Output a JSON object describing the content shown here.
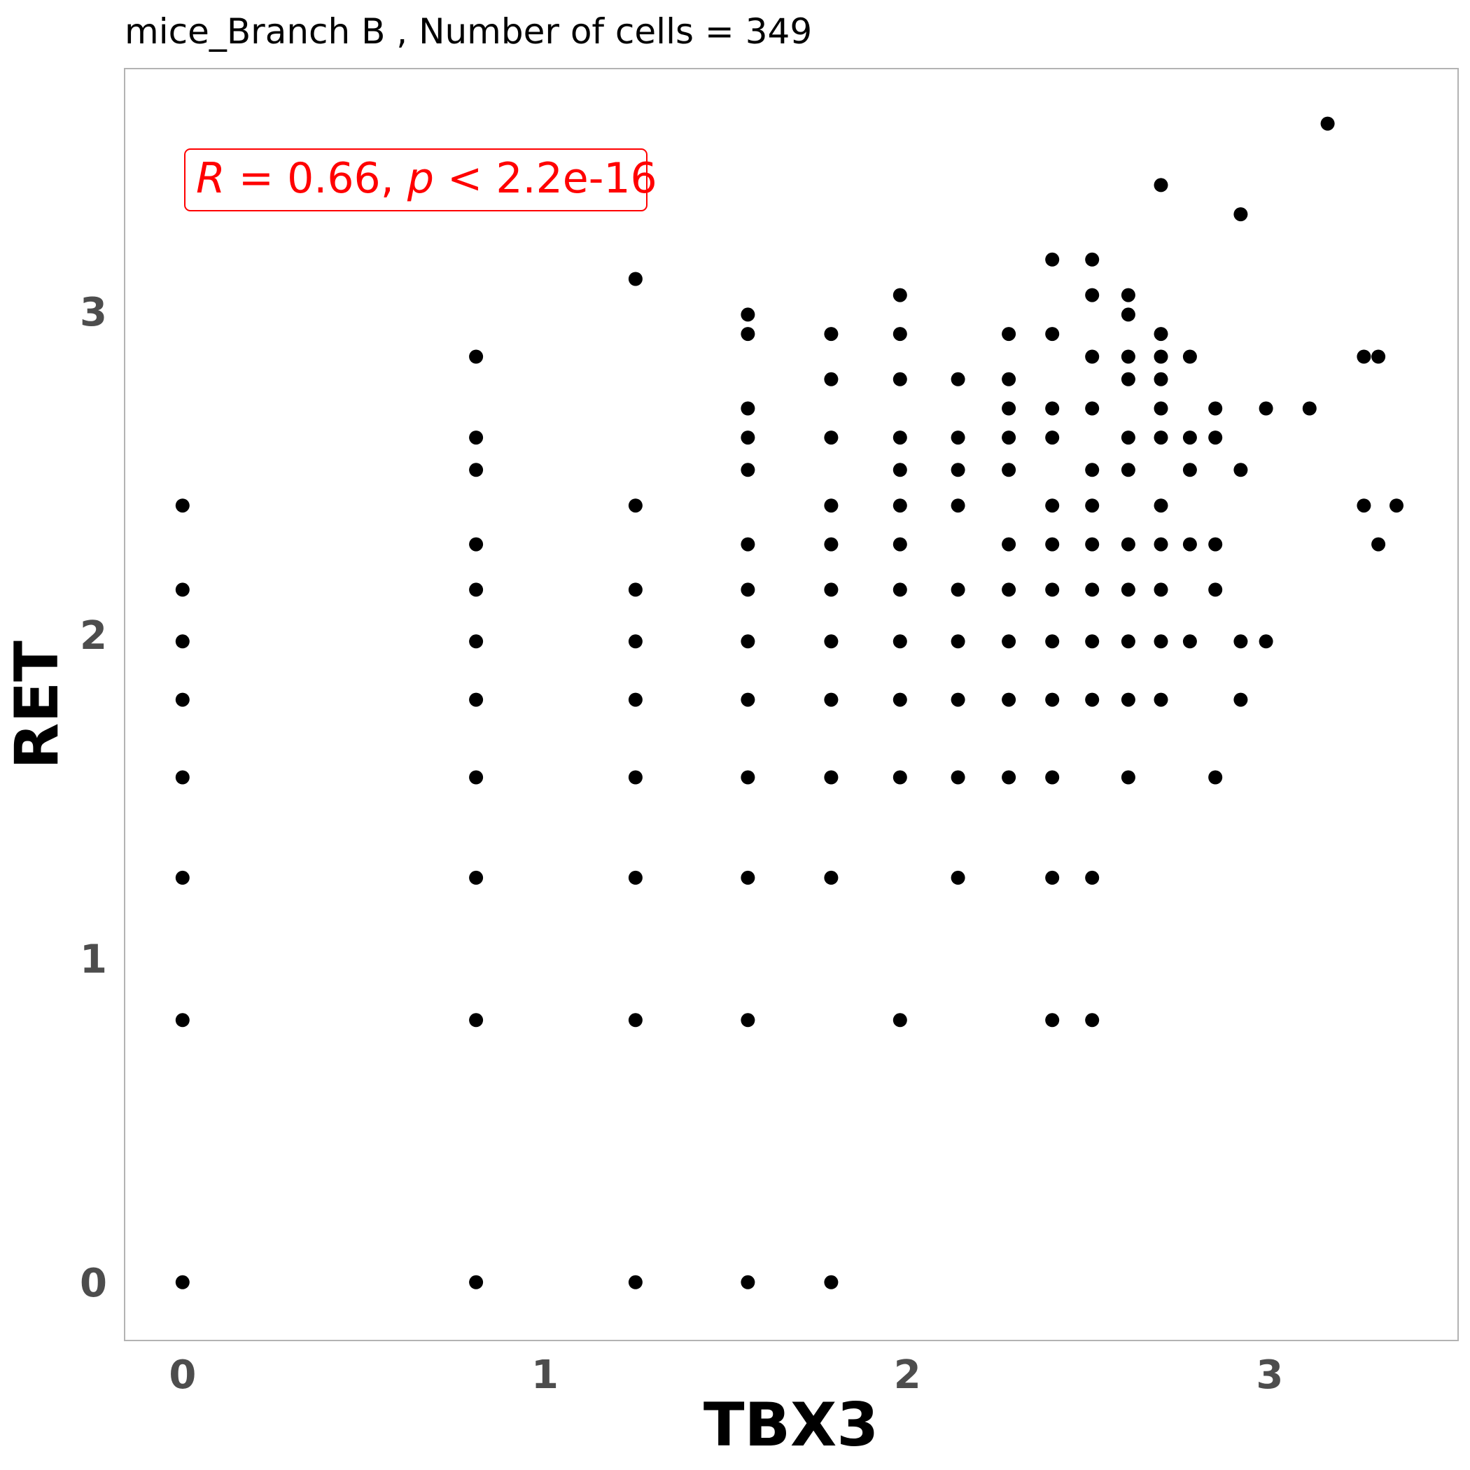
{
  "chart_data": {
    "type": "scatter",
    "title": "mice_Branch B , Number of cells =  349",
    "xlabel": "TBX3",
    "ylabel": "RET",
    "xlim": [
      -0.16,
      3.52
    ],
    "ylim": [
      -0.18,
      3.75
    ],
    "xticks": [
      "0",
      "1",
      "2",
      "3"
    ],
    "yticks": [
      "0",
      "1",
      "2",
      "3"
    ],
    "grid": false,
    "point_color": "#000000",
    "annotation": {
      "r_symbol": "R",
      "r_text": " = 0.66, ",
      "p_symbol": "p",
      "p_text": " < 2.2e-16",
      "color": "#ff0000"
    },
    "points": [
      [
        0,
        0
      ],
      [
        0,
        0.81
      ],
      [
        0,
        1.25
      ],
      [
        0,
        1.56
      ],
      [
        0,
        1.8
      ],
      [
        0,
        1.98
      ],
      [
        0,
        2.14
      ],
      [
        0,
        2.4
      ],
      [
        0.81,
        0
      ],
      [
        0.81,
        0.81
      ],
      [
        0.81,
        1.25
      ],
      [
        0.81,
        1.56
      ],
      [
        0.81,
        1.8
      ],
      [
        0.81,
        1.98
      ],
      [
        0.81,
        2.14
      ],
      [
        0.81,
        2.28
      ],
      [
        0.81,
        2.51
      ],
      [
        0.81,
        2.61
      ],
      [
        0.81,
        2.86
      ],
      [
        1.25,
        0
      ],
      [
        1.25,
        0.81
      ],
      [
        1.25,
        1.25
      ],
      [
        1.25,
        1.56
      ],
      [
        1.25,
        1.8
      ],
      [
        1.25,
        1.98
      ],
      [
        1.25,
        2.14
      ],
      [
        1.25,
        2.4
      ],
      [
        1.25,
        3.1
      ],
      [
        1.56,
        0
      ],
      [
        1.56,
        0.81
      ],
      [
        1.56,
        1.25
      ],
      [
        1.56,
        1.56
      ],
      [
        1.56,
        1.98
      ],
      [
        1.56,
        1.8
      ],
      [
        1.56,
        2.14
      ],
      [
        1.56,
        2.28
      ],
      [
        1.56,
        2.51
      ],
      [
        1.56,
        2.61
      ],
      [
        1.56,
        2.7
      ],
      [
        1.56,
        2.93
      ],
      [
        1.56,
        2.99
      ],
      [
        1.79,
        0
      ],
      [
        1.79,
        1.25
      ],
      [
        1.79,
        1.56
      ],
      [
        1.79,
        1.8
      ],
      [
        1.79,
        1.98
      ],
      [
        1.79,
        2.14
      ],
      [
        1.79,
        2.28
      ],
      [
        1.79,
        2.4
      ],
      [
        1.79,
        2.61
      ],
      [
        1.79,
        2.79
      ],
      [
        1.79,
        2.93
      ],
      [
        1.98,
        0.81
      ],
      [
        1.98,
        1.56
      ],
      [
        1.98,
        1.8
      ],
      [
        1.98,
        1.98
      ],
      [
        1.98,
        2.14
      ],
      [
        1.98,
        2.28
      ],
      [
        1.98,
        2.4
      ],
      [
        1.98,
        2.51
      ],
      [
        1.98,
        2.61
      ],
      [
        1.98,
        2.79
      ],
      [
        1.98,
        2.93
      ],
      [
        1.98,
        3.05
      ],
      [
        2.14,
        1.25
      ],
      [
        2.14,
        1.56
      ],
      [
        2.14,
        1.8
      ],
      [
        2.14,
        1.98
      ],
      [
        2.14,
        2.14
      ],
      [
        2.14,
        2.4
      ],
      [
        2.14,
        2.51
      ],
      [
        2.14,
        2.61
      ],
      [
        2.14,
        2.79
      ],
      [
        2.28,
        1.56
      ],
      [
        2.28,
        1.8
      ],
      [
        2.28,
        1.98
      ],
      [
        2.28,
        2.14
      ],
      [
        2.28,
        2.28
      ],
      [
        2.28,
        2.51
      ],
      [
        2.28,
        2.61
      ],
      [
        2.28,
        2.7
      ],
      [
        2.28,
        2.79
      ],
      [
        2.28,
        2.93
      ],
      [
        2.4,
        0.81
      ],
      [
        2.4,
        1.25
      ],
      [
        2.4,
        1.56
      ],
      [
        2.4,
        1.8
      ],
      [
        2.4,
        1.98
      ],
      [
        2.4,
        2.14
      ],
      [
        2.4,
        2.28
      ],
      [
        2.4,
        2.4
      ],
      [
        2.4,
        2.61
      ],
      [
        2.4,
        2.7
      ],
      [
        2.4,
        2.93
      ],
      [
        2.4,
        3.16
      ],
      [
        2.51,
        0.81
      ],
      [
        2.51,
        1.25
      ],
      [
        2.51,
        1.8
      ],
      [
        2.51,
        1.98
      ],
      [
        2.51,
        2.14
      ],
      [
        2.51,
        2.28
      ],
      [
        2.51,
        2.4
      ],
      [
        2.51,
        2.51
      ],
      [
        2.51,
        2.7
      ],
      [
        2.51,
        2.86
      ],
      [
        2.51,
        3.05
      ],
      [
        2.51,
        3.16
      ],
      [
        2.61,
        1.56
      ],
      [
        2.61,
        1.8
      ],
      [
        2.61,
        1.98
      ],
      [
        2.61,
        2.14
      ],
      [
        2.61,
        2.28
      ],
      [
        2.61,
        2.51
      ],
      [
        2.61,
        2.61
      ],
      [
        2.61,
        2.79
      ],
      [
        2.61,
        2.86
      ],
      [
        2.61,
        2.99
      ],
      [
        2.61,
        3.05
      ],
      [
        2.7,
        1.8
      ],
      [
        2.7,
        1.98
      ],
      [
        2.7,
        2.14
      ],
      [
        2.7,
        2.28
      ],
      [
        2.7,
        2.4
      ],
      [
        2.7,
        2.61
      ],
      [
        2.7,
        2.7
      ],
      [
        2.7,
        2.79
      ],
      [
        2.7,
        2.86
      ],
      [
        2.7,
        2.93
      ],
      [
        2.7,
        3.39
      ],
      [
        2.78,
        1.98
      ],
      [
        2.78,
        2.28
      ],
      [
        2.78,
        2.51
      ],
      [
        2.78,
        2.61
      ],
      [
        2.78,
        2.86
      ],
      [
        2.85,
        1.56
      ],
      [
        2.85,
        2.14
      ],
      [
        2.85,
        2.28
      ],
      [
        2.85,
        2.61
      ],
      [
        2.85,
        2.7
      ],
      [
        2.92,
        1.8
      ],
      [
        2.92,
        1.98
      ],
      [
        2.92,
        2.51
      ],
      [
        2.92,
        3.3
      ],
      [
        2.99,
        1.98
      ],
      [
        2.99,
        2.7
      ],
      [
        3.11,
        2.7
      ],
      [
        3.16,
        3.58
      ],
      [
        3.26,
        2.4
      ],
      [
        3.26,
        2.86
      ],
      [
        3.3,
        2.28
      ],
      [
        3.3,
        2.86
      ],
      [
        3.35,
        2.4
      ]
    ]
  }
}
